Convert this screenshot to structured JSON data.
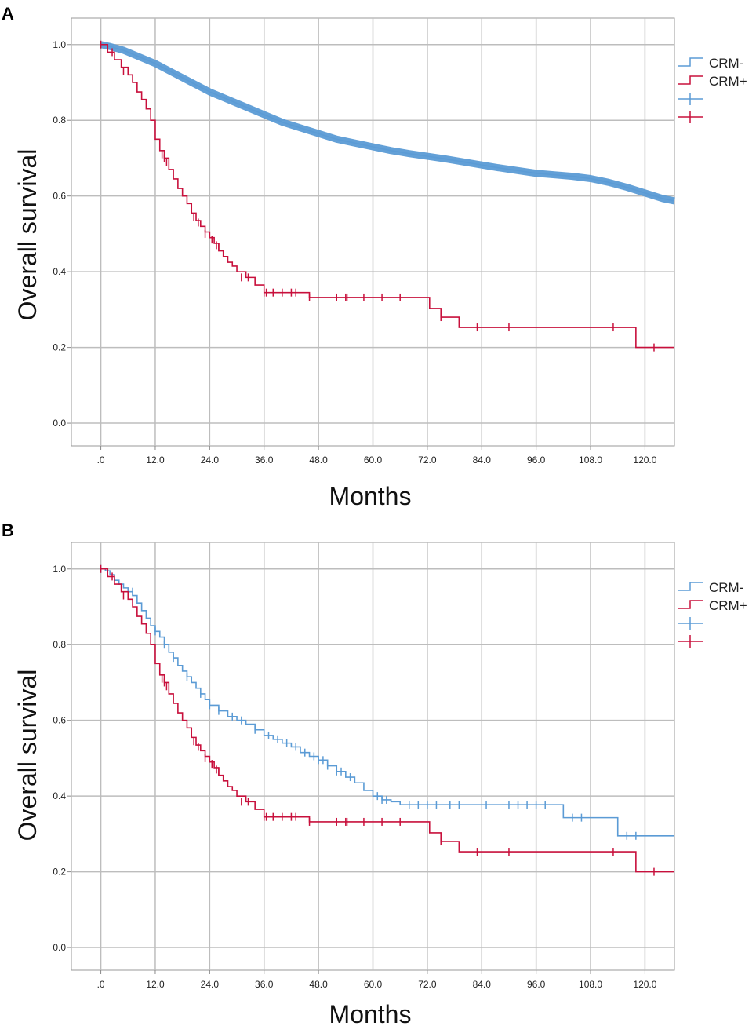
{
  "chart_data": [
    {
      "panel": "A",
      "type": "line",
      "title": "",
      "xlabel": "Months",
      "ylabel": "Overall survival",
      "xlim": [
        -6.5,
        126.5
      ],
      "ylim": [
        -0.06,
        1.07
      ],
      "x_ticks": [
        0,
        12,
        24,
        36,
        48,
        60,
        72,
        84,
        96,
        108,
        120
      ],
      "x_tick_labels": [
        ".0",
        "12.0",
        "24.0",
        "36.0",
        "48.0",
        "60.0",
        "72.0",
        "84.0",
        "96.0",
        "108.0",
        "120.0"
      ],
      "y_ticks": [
        0,
        0.2,
        0.4,
        0.6,
        0.8,
        1.0
      ],
      "y_tick_labels": [
        "0.0",
        "0.2",
        "0.4",
        "0.6",
        "0.8",
        "1.0"
      ],
      "grid": true,
      "legend_position": "right",
      "legend": [
        "CRM-",
        "CRM+",
        "",
        ""
      ],
      "series": [
        {
          "name": "CRM-",
          "color": "#5b9bd5",
          "step": false,
          "heavy_censoring": true,
          "x": [
            0,
            2,
            5,
            8,
            12,
            16,
            20,
            24,
            28,
            32,
            36,
            40,
            44,
            48,
            52,
            56,
            60,
            64,
            68,
            72,
            76,
            80,
            84,
            88,
            92,
            96,
            100,
            104,
            108,
            112,
            116,
            120,
            124,
            126.5
          ],
          "y": [
            1.0,
            0.995,
            0.985,
            0.97,
            0.95,
            0.925,
            0.9,
            0.875,
            0.855,
            0.835,
            0.815,
            0.795,
            0.78,
            0.765,
            0.75,
            0.74,
            0.73,
            0.72,
            0.712,
            0.705,
            0.698,
            0.69,
            0.682,
            0.674,
            0.667,
            0.66,
            0.656,
            0.652,
            0.646,
            0.636,
            0.623,
            0.608,
            0.593,
            0.587
          ],
          "censor_x": [],
          "censor_y": []
        },
        {
          "name": "CRM+",
          "color": "#c8103c",
          "step": true,
          "x": [
            0,
            1.5,
            3,
            4.5,
            6,
            7,
            8,
            9,
            10,
            11,
            12,
            13,
            14,
            15,
            16,
            17,
            18,
            19,
            20,
            21,
            22,
            23,
            24,
            25,
            26,
            27,
            28,
            29,
            30,
            32,
            34,
            36,
            46,
            72.5,
            75,
            79,
            118,
            126.5
          ],
          "y": [
            1.0,
            0.98,
            0.96,
            0.94,
            0.92,
            0.9,
            0.875,
            0.855,
            0.83,
            0.8,
            0.75,
            0.72,
            0.7,
            0.67,
            0.645,
            0.62,
            0.6,
            0.58,
            0.555,
            0.535,
            0.52,
            0.505,
            0.49,
            0.475,
            0.455,
            0.44,
            0.425,
            0.415,
            0.4,
            0.385,
            0.365,
            0.345,
            0.332,
            0.303,
            0.28,
            0.253,
            0.2,
            0.2
          ],
          "censor_x": [
            0,
            2.5,
            5,
            13.5,
            14,
            14.5,
            20.5,
            21.5,
            23,
            24.5,
            25.5,
            26,
            31,
            32.5,
            36,
            36.5,
            38,
            40,
            42,
            43,
            46,
            52,
            54,
            54.3,
            58,
            62,
            66,
            75,
            83,
            90,
            113,
            122
          ],
          "censor_y": [
            1.0,
            0.98,
            0.93,
            0.71,
            0.7,
            0.69,
            0.545,
            0.53,
            0.5,
            0.485,
            0.47,
            0.465,
            0.385,
            0.385,
            0.345,
            0.345,
            0.345,
            0.345,
            0.345,
            0.345,
            0.332,
            0.332,
            0.332,
            0.332,
            0.332,
            0.332,
            0.332,
            0.28,
            0.253,
            0.253,
            0.253,
            0.2
          ]
        }
      ]
    },
    {
      "panel": "B",
      "type": "line",
      "title": "",
      "xlabel": "Months",
      "ylabel": "Overall survival",
      "xlim": [
        -6.5,
        126.5
      ],
      "ylim": [
        -0.06,
        1.07
      ],
      "x_ticks": [
        0,
        12,
        24,
        36,
        48,
        60,
        72,
        84,
        96,
        108,
        120
      ],
      "x_tick_labels": [
        ".0",
        "12.0",
        "24.0",
        "36.0",
        "48.0",
        "60.0",
        "72.0",
        "84.0",
        "96.0",
        "108.0",
        "120.0"
      ],
      "y_ticks": [
        0,
        0.2,
        0.4,
        0.6,
        0.8,
        1.0
      ],
      "y_tick_labels": [
        "0.0",
        "0.2",
        "0.4",
        "0.6",
        "0.8",
        "1.0"
      ],
      "grid": true,
      "legend_position": "right",
      "legend": [
        "CRM-",
        "CRM+",
        "",
        ""
      ],
      "series": [
        {
          "name": "CRM-",
          "color": "#5b9bd5",
          "step": true,
          "x": [
            0,
            1,
            2,
            3,
            4,
            5,
            6,
            7,
            8,
            9,
            10,
            11,
            12,
            13,
            14,
            15,
            16,
            17,
            18,
            19,
            20,
            21,
            22,
            23,
            24,
            26,
            28,
            30,
            32,
            34,
            36,
            38,
            40,
            42,
            44,
            46,
            48,
            50,
            52,
            54,
            56,
            58,
            60,
            62,
            64,
            66,
            102,
            114,
            126.5
          ],
          "y": [
            1.0,
            0.995,
            0.985,
            0.97,
            0.96,
            0.95,
            0.94,
            0.93,
            0.91,
            0.89,
            0.87,
            0.85,
            0.835,
            0.82,
            0.8,
            0.78,
            0.765,
            0.745,
            0.73,
            0.715,
            0.7,
            0.685,
            0.67,
            0.655,
            0.64,
            0.625,
            0.61,
            0.6,
            0.59,
            0.575,
            0.56,
            0.55,
            0.54,
            0.53,
            0.515,
            0.505,
            0.495,
            0.48,
            0.465,
            0.45,
            0.435,
            0.415,
            0.4,
            0.39,
            0.385,
            0.377,
            0.343,
            0.295,
            0.295
          ],
          "censor_x": [
            0,
            7,
            12,
            14,
            16,
            19,
            22,
            24,
            26,
            29,
            31,
            34,
            37,
            39,
            41,
            43,
            45,
            47,
            48,
            49,
            50,
            52,
            53,
            55,
            61,
            62,
            63,
            68,
            70,
            72,
            74,
            77,
            79,
            85,
            90,
            92,
            94,
            96,
            98,
            104,
            106,
            116,
            118
          ],
          "censor_y": [
            1.0,
            0.94,
            0.835,
            0.8,
            0.765,
            0.715,
            0.67,
            0.64,
            0.625,
            0.61,
            0.6,
            0.575,
            0.56,
            0.55,
            0.54,
            0.53,
            0.515,
            0.505,
            0.495,
            0.495,
            0.48,
            0.465,
            0.465,
            0.45,
            0.4,
            0.39,
            0.39,
            0.377,
            0.377,
            0.377,
            0.377,
            0.377,
            0.377,
            0.377,
            0.377,
            0.377,
            0.377,
            0.377,
            0.377,
            0.343,
            0.343,
            0.295,
            0.295
          ]
        },
        {
          "name": "CRM+",
          "color": "#c8103c",
          "step": true,
          "x": [
            0,
            1.5,
            3,
            4.5,
            6,
            7,
            8,
            9,
            10,
            11,
            12,
            13,
            14,
            15,
            16,
            17,
            18,
            19,
            20,
            21,
            22,
            23,
            24,
            25,
            26,
            27,
            28,
            29,
            30,
            32,
            34,
            36,
            46,
            72.5,
            75,
            79,
            118,
            126.5
          ],
          "y": [
            1.0,
            0.98,
            0.96,
            0.94,
            0.92,
            0.9,
            0.875,
            0.855,
            0.83,
            0.8,
            0.75,
            0.72,
            0.7,
            0.67,
            0.645,
            0.62,
            0.6,
            0.58,
            0.555,
            0.535,
            0.52,
            0.505,
            0.49,
            0.475,
            0.455,
            0.44,
            0.425,
            0.415,
            0.4,
            0.385,
            0.365,
            0.345,
            0.332,
            0.303,
            0.28,
            0.253,
            0.2,
            0.2
          ],
          "censor_x": [
            0,
            2.5,
            5,
            13.5,
            14,
            14.5,
            20.5,
            21.5,
            23,
            24.5,
            25.5,
            26,
            31,
            32.5,
            36,
            36.5,
            38,
            40,
            42,
            43,
            46,
            52,
            54,
            54.3,
            58,
            62,
            66,
            75,
            83,
            90,
            113,
            122
          ],
          "censor_y": [
            1.0,
            0.98,
            0.93,
            0.71,
            0.7,
            0.69,
            0.545,
            0.53,
            0.5,
            0.485,
            0.47,
            0.465,
            0.385,
            0.385,
            0.345,
            0.345,
            0.345,
            0.345,
            0.345,
            0.345,
            0.332,
            0.332,
            0.332,
            0.332,
            0.332,
            0.332,
            0.332,
            0.28,
            0.253,
            0.253,
            0.253,
            0.2
          ]
        }
      ]
    }
  ]
}
